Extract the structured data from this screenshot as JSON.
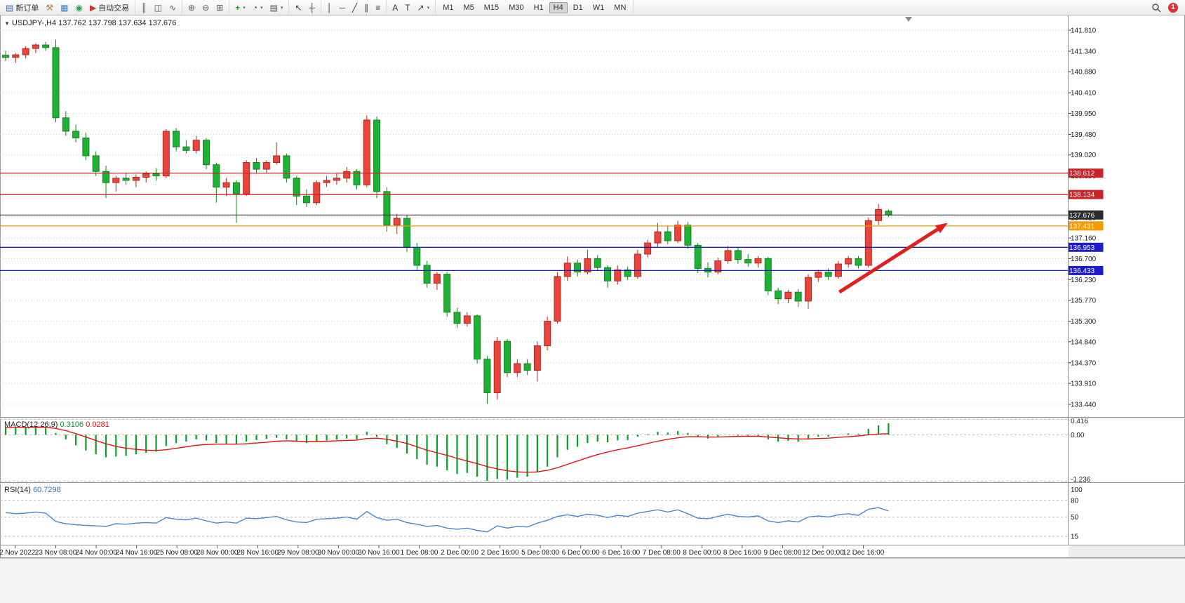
{
  "toolbar": {
    "groups": [
      {
        "items": [
          {
            "name": "new-order-button",
            "icon": "new-order-icon",
            "label": "新订单"
          },
          {
            "name": "tools-button",
            "icon": "hammer-icon"
          },
          {
            "name": "new-chart-button",
            "icon": "chart-window-icon"
          },
          {
            "name": "profiles-button",
            "icon": "profile-icon"
          },
          {
            "name": "auto-trading-button",
            "icon": "play-icon",
            "label": "自动交易"
          }
        ]
      },
      {
        "items": [
          {
            "name": "bar-chart-button",
            "icon": "bar-chart-icon"
          },
          {
            "name": "candlestick-chart-button",
            "icon": "candlestick-icon"
          },
          {
            "name": "line-chart-button",
            "icon": "line-chart-icon"
          }
        ]
      },
      {
        "items": [
          {
            "name": "zoom-in-button",
            "icon": "zoom-in-icon"
          },
          {
            "name": "zoom-out-button",
            "icon": "zoom-out-icon"
          },
          {
            "name": "tile-windows-button",
            "icon": "tile-windows-icon"
          }
        ]
      },
      {
        "items": [
          {
            "name": "indicators-button",
            "icon": "indicators-icon",
            "dropdown": true
          },
          {
            "name": "periods-button",
            "icon": "clock-icon",
            "dropdown": true
          },
          {
            "name": "templates-button",
            "icon": "template-icon",
            "dropdown": true
          }
        ]
      },
      {
        "items": [
          {
            "name": "cursor-button",
            "icon": "cursor-icon"
          },
          {
            "name": "crosshair-button",
            "icon": "crosshair-icon"
          }
        ]
      },
      {
        "items": [
          {
            "name": "vertical-line-button",
            "icon": "vline-icon"
          },
          {
            "name": "horizontal-line-button",
            "icon": "hline-icon"
          },
          {
            "name": "trendline-button",
            "icon": "trendline-icon"
          },
          {
            "name": "equidistant-channel-button",
            "icon": "channel-icon"
          },
          {
            "name": "fibonacci-button",
            "icon": "fibonacci-icon"
          }
        ]
      },
      {
        "items": [
          {
            "name": "text-button",
            "icon": "text-icon"
          },
          {
            "name": "text-label-button",
            "icon": "label-icon"
          },
          {
            "name": "arrows-button",
            "icon": "arrows-icon",
            "dropdown": true
          }
        ]
      }
    ],
    "timeframes": [
      "M1",
      "M5",
      "M15",
      "M30",
      "H1",
      "H4",
      "D1",
      "W1",
      "MN"
    ],
    "active_timeframe": "H4",
    "badge_count": "1"
  },
  "colors": {
    "bull": "#e8453c",
    "bull_border": "#b3271e",
    "bear": "#1fb135",
    "bear_border": "#13831f",
    "macd_hist": "#00a327",
    "macd_signal": "#e01414",
    "rsi_line": "#4a86c8",
    "grid": "#cfcfcf",
    "arrow": "#e01f1f",
    "axis_text": "#1a1a1a",
    "line_red": "#cc2127",
    "line_orange": "#f59a00",
    "line_blue": "#1c1ccc",
    "price_line": "#2b2b2b"
  },
  "chart_data": {
    "type": "candlestick",
    "symbol": "USDJPY-",
    "period": "H4",
    "title_line": "USDJPY-,H4  137.762 137.798 137.634 137.676",
    "current_ohlc": {
      "open": 137.762,
      "high": 137.798,
      "low": 137.634,
      "close": 137.676
    },
    "price_axis": [
      "141.810",
      "141.340",
      "140.880",
      "140.410",
      "139.950",
      "139.480",
      "139.020",
      "138.550",
      "138.090",
      "137.620",
      "137.160",
      "136.700",
      "136.230",
      "135.770",
      "135.300",
      "134.840",
      "134.370",
      "133.910",
      "133.440"
    ],
    "hlines": [
      {
        "label": "138.612",
        "price": 138.612,
        "color": "#cc2127",
        "type": "resistance-line"
      },
      {
        "label": "138.134",
        "price": 138.134,
        "color": "#cc2127",
        "type": "resistance-line"
      },
      {
        "label": "137.676",
        "price": 137.676,
        "color": "#2b2b2b",
        "type": "current-price-line"
      },
      {
        "label": "137.431",
        "price": 137.431,
        "color": "#f59a00",
        "type": "support-line"
      },
      {
        "label": "136.953",
        "price": 136.953,
        "color": "#1c1ccc",
        "type": "support-line"
      },
      {
        "label": "136.433",
        "price": 136.433,
        "color": "#1c1ccc",
        "type": "support-line"
      }
    ],
    "arrow": {
      "from_bar": 83.1,
      "from_price": 135.95,
      "to_bar": 93.9,
      "to_price": 137.5
    },
    "shift_marker_bar": 90,
    "candles": [
      [
        141.25,
        141.35,
        141.12,
        141.2
      ],
      [
        141.2,
        141.3,
        141.08,
        141.26
      ],
      [
        141.26,
        141.45,
        141.18,
        141.4
      ],
      [
        141.4,
        141.52,
        141.3,
        141.48
      ],
      [
        141.48,
        141.55,
        141.35,
        141.42
      ],
      [
        141.42,
        141.6,
        139.75,
        139.85
      ],
      [
        139.85,
        140.0,
        139.45,
        139.55
      ],
      [
        139.55,
        139.7,
        139.3,
        139.4
      ],
      [
        139.4,
        139.52,
        138.9,
        139.0
      ],
      [
        139.0,
        139.1,
        138.55,
        138.65
      ],
      [
        138.65,
        138.78,
        138.05,
        138.4
      ],
      [
        138.4,
        138.55,
        138.2,
        138.5
      ],
      [
        138.5,
        138.62,
        138.35,
        138.45
      ],
      [
        138.45,
        138.58,
        138.3,
        138.52
      ],
      [
        138.52,
        138.65,
        138.4,
        138.6
      ],
      [
        138.6,
        138.72,
        138.45,
        138.55
      ],
      [
        138.55,
        139.6,
        138.5,
        139.55
      ],
      [
        139.55,
        139.62,
        139.1,
        139.2
      ],
      [
        139.2,
        139.35,
        139.05,
        139.12
      ],
      [
        139.12,
        139.45,
        139.05,
        139.35
      ],
      [
        139.35,
        139.4,
        138.7,
        138.8
      ],
      [
        138.8,
        138.85,
        137.95,
        138.3
      ],
      [
        138.3,
        138.5,
        138.1,
        138.4
      ],
      [
        138.4,
        138.45,
        137.5,
        138.15
      ],
      [
        138.15,
        138.9,
        138.1,
        138.85
      ],
      [
        138.85,
        138.95,
        138.6,
        138.7
      ],
      [
        138.7,
        138.9,
        138.62,
        138.85
      ],
      [
        138.85,
        139.3,
        138.8,
        139.0
      ],
      [
        139.0,
        139.05,
        138.4,
        138.5
      ],
      [
        138.5,
        138.55,
        137.9,
        138.1
      ],
      [
        138.1,
        138.25,
        137.85,
        137.95
      ],
      [
        137.95,
        138.45,
        137.9,
        138.4
      ],
      [
        138.4,
        138.55,
        138.3,
        138.45
      ],
      [
        138.45,
        138.6,
        138.35,
        138.5
      ],
      [
        138.5,
        138.75,
        138.4,
        138.65
      ],
      [
        138.65,
        138.7,
        138.25,
        138.35
      ],
      [
        138.35,
        139.9,
        138.3,
        139.8
      ],
      [
        139.8,
        139.88,
        138.05,
        138.2
      ],
      [
        138.2,
        138.3,
        137.3,
        137.45
      ],
      [
        137.45,
        137.7,
        137.25,
        137.6
      ],
      [
        137.6,
        137.68,
        136.85,
        136.95
      ],
      [
        136.95,
        137.05,
        136.45,
        136.55
      ],
      [
        136.55,
        136.65,
        136.05,
        136.15
      ],
      [
        136.15,
        136.4,
        136.0,
        136.35
      ],
      [
        136.35,
        136.4,
        135.4,
        135.5
      ],
      [
        135.5,
        135.6,
        135.15,
        135.25
      ],
      [
        135.25,
        135.5,
        135.18,
        135.42
      ],
      [
        135.42,
        135.45,
        134.35,
        134.45
      ],
      [
        134.45,
        134.52,
        133.45,
        133.7
      ],
      [
        133.7,
        134.95,
        133.55,
        134.85
      ],
      [
        134.85,
        134.9,
        134.05,
        134.15
      ],
      [
        134.15,
        134.45,
        134.05,
        134.35
      ],
      [
        134.35,
        134.45,
        134.1,
        134.2
      ],
      [
        134.2,
        134.85,
        133.95,
        134.75
      ],
      [
        134.75,
        135.4,
        134.65,
        135.3
      ],
      [
        135.3,
        136.4,
        135.25,
        136.3
      ],
      [
        136.3,
        136.75,
        136.2,
        136.6
      ],
      [
        136.6,
        136.68,
        136.3,
        136.4
      ],
      [
        136.4,
        136.9,
        136.35,
        136.7
      ],
      [
        136.7,
        136.78,
        136.42,
        136.5
      ],
      [
        136.5,
        136.55,
        136.05,
        136.2
      ],
      [
        136.2,
        136.55,
        136.12,
        136.45
      ],
      [
        136.45,
        136.52,
        136.22,
        136.3
      ],
      [
        136.3,
        136.9,
        136.25,
        136.8
      ],
      [
        136.8,
        137.12,
        136.72,
        137.05
      ],
      [
        137.05,
        137.5,
        136.95,
        137.3
      ],
      [
        137.3,
        137.42,
        137.02,
        137.1
      ],
      [
        137.1,
        137.55,
        137.05,
        137.45
      ],
      [
        137.45,
        137.52,
        136.92,
        137.0
      ],
      [
        137.0,
        137.05,
        136.38,
        136.48
      ],
      [
        136.48,
        136.62,
        136.28,
        136.4
      ],
      [
        136.4,
        136.72,
        136.35,
        136.65
      ],
      [
        136.65,
        136.98,
        136.58,
        136.88
      ],
      [
        136.88,
        136.95,
        136.58,
        136.68
      ],
      [
        136.68,
        136.8,
        136.52,
        136.6
      ],
      [
        136.6,
        136.76,
        136.5,
        136.7
      ],
      [
        136.7,
        136.74,
        135.88,
        135.98
      ],
      [
        135.98,
        136.05,
        135.68,
        135.8
      ],
      [
        135.8,
        136.0,
        135.7,
        135.95
      ],
      [
        135.95,
        136.02,
        135.62,
        135.75
      ],
      [
        135.75,
        136.35,
        135.58,
        136.28
      ],
      [
        136.28,
        136.45,
        136.18,
        136.4
      ],
      [
        136.4,
        136.48,
        136.22,
        136.3
      ],
      [
        136.3,
        136.65,
        136.25,
        136.58
      ],
      [
        136.58,
        136.76,
        136.5,
        136.7
      ],
      [
        136.7,
        136.76,
        136.48,
        136.55
      ],
      [
        136.55,
        137.62,
        136.5,
        137.55
      ],
      [
        137.55,
        137.92,
        137.45,
        137.8
      ],
      [
        137.762,
        137.798,
        137.634,
        137.676
      ]
    ],
    "macd": {
      "label": "MACD(12,26,9)",
      "main_value": "0.3106",
      "signal_value": "0.0281",
      "axis_labels": [
        "0.416",
        "0.00",
        "-1.236"
      ],
      "axis_values": [
        0.416,
        0,
        -1.236
      ],
      "histogram": [
        0.22,
        0.2,
        0.19,
        0.21,
        0.22,
        0.05,
        -0.12,
        -0.28,
        -0.42,
        -0.52,
        -0.6,
        -0.58,
        -0.56,
        -0.52,
        -0.48,
        -0.45,
        -0.3,
        -0.22,
        -0.18,
        -0.12,
        -0.15,
        -0.22,
        -0.24,
        -0.26,
        -0.18,
        -0.14,
        -0.11,
        -0.08,
        -0.12,
        -0.18,
        -0.22,
        -0.18,
        -0.15,
        -0.13,
        -0.1,
        -0.12,
        0.08,
        -0.05,
        -0.25,
        -0.35,
        -0.5,
        -0.65,
        -0.8,
        -0.85,
        -0.95,
        -1.05,
        -1.02,
        -1.12,
        -1.236,
        -1.18,
        -1.2,
        -1.15,
        -1.12,
        -1.0,
        -0.85,
        -0.6,
        -0.4,
        -0.32,
        -0.22,
        -0.18,
        -0.2,
        -0.15,
        -0.14,
        -0.05,
        0.02,
        0.08,
        0.06,
        0.1,
        0.05,
        -0.05,
        -0.1,
        -0.06,
        0.0,
        -0.02,
        -0.04,
        -0.03,
        -0.12,
        -0.18,
        -0.16,
        -0.18,
        -0.1,
        -0.05,
        -0.05,
        0.0,
        0.04,
        0.03,
        0.16,
        0.25,
        0.31
      ],
      "signal": [
        0.2,
        0.2,
        0.2,
        0.2,
        0.2,
        0.17,
        0.11,
        0.03,
        -0.06,
        -0.15,
        -0.24,
        -0.31,
        -0.36,
        -0.39,
        -0.41,
        -0.42,
        -0.4,
        -0.36,
        -0.32,
        -0.28,
        -0.26,
        -0.25,
        -0.25,
        -0.25,
        -0.24,
        -0.22,
        -0.2,
        -0.17,
        -0.16,
        -0.17,
        -0.18,
        -0.18,
        -0.17,
        -0.16,
        -0.15,
        -0.14,
        -0.1,
        -0.09,
        -0.12,
        -0.17,
        -0.23,
        -0.32,
        -0.41,
        -0.48,
        -0.55,
        -0.63,
        -0.7,
        -0.77,
        -0.85,
        -0.91,
        -0.96,
        -0.99,
        -1.0,
        -0.99,
        -0.95,
        -0.88,
        -0.79,
        -0.7,
        -0.61,
        -0.53,
        -0.46,
        -0.4,
        -0.35,
        -0.29,
        -0.23,
        -0.17,
        -0.12,
        -0.08,
        -0.05,
        -0.05,
        -0.06,
        -0.06,
        -0.05,
        -0.04,
        -0.04,
        -0.04,
        -0.06,
        -0.08,
        -0.1,
        -0.11,
        -0.11,
        -0.1,
        -0.09,
        -0.07,
        -0.05,
        -0.03,
        0.0,
        0.02,
        0.03
      ]
    },
    "rsi": {
      "label": "RSI(14)",
      "value": "60.7298",
      "axis_labels": [
        "100",
        "80",
        "50",
        "15"
      ],
      "axis_values": [
        100,
        80,
        50,
        15
      ],
      "levels": [
        80,
        50,
        15
      ],
      "values": [
        58,
        56,
        57,
        59,
        57,
        42,
        38,
        36,
        35,
        34,
        33,
        38,
        37,
        39,
        40,
        39,
        49,
        46,
        45,
        48,
        43,
        39,
        41,
        39,
        48,
        47,
        49,
        51,
        45,
        41,
        40,
        46,
        47,
        48,
        50,
        46,
        60,
        49,
        44,
        46,
        40,
        37,
        33,
        35,
        30,
        28,
        30,
        26,
        23,
        34,
        30,
        33,
        32,
        39,
        44,
        51,
        54,
        51,
        55,
        53,
        49,
        53,
        51,
        57,
        60,
        63,
        59,
        63,
        56,
        48,
        47,
        51,
        55,
        51,
        50,
        52,
        43,
        40,
        43,
        41,
        50,
        52,
        50,
        54,
        56,
        53,
        64,
        67,
        60.7
      ]
    },
    "time_axis": [
      "22 Nov 2022",
      "23 Nov 08:00",
      "24 Nov 00:00",
      "24 Nov 16:00",
      "25 Nov 08:00",
      "28 Nov 00:00",
      "28 Nov 16:00",
      "29 Nov 08:00",
      "30 Nov 00:00",
      "30 Nov 16:00",
      "1 Dec 08:00",
      "2 Dec 00:00",
      "2 Dec 16:00",
      "5 Dec 08:00",
      "6 Dec 00:00",
      "6 Dec 16:00",
      "7 Dec 08:00",
      "8 Dec 00:00",
      "8 Dec 16:00",
      "9 Dec 08:00",
      "12 Dec 00:00",
      "12 Dec 16:00"
    ]
  }
}
